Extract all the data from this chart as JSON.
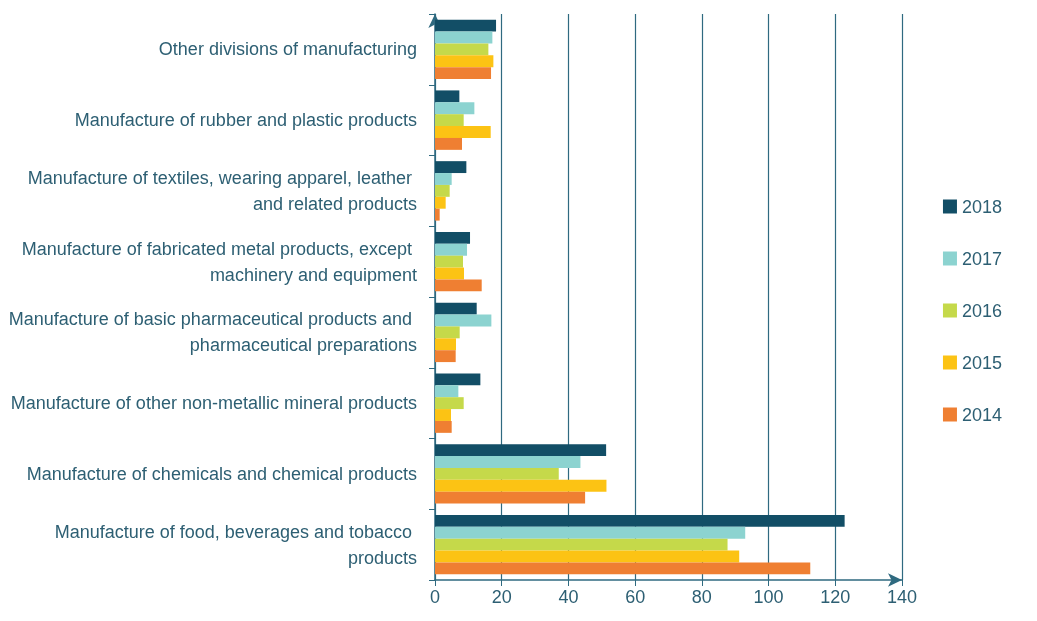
{
  "chart_data": {
    "type": "bar",
    "orientation": "horizontal",
    "categories": [
      "Other divisions of manufacturing",
      "Manufacture of rubber and plastic products",
      "Manufacture of textiles, wearing apparel, leather and related products",
      "Manufacture of fabricated metal products, except machinery and equipment",
      "Manufacture of basic pharmaceutical products and pharmaceutical preparations",
      "Manufacture of other non-metallic mineral products",
      "Manufacture of chemicals and chemical products",
      "Manufacture of food, beverages and tobacco products"
    ],
    "series": [
      {
        "name": "2018",
        "color": "#124e66",
        "values": [
          18.3,
          7.3,
          9.4,
          10.5,
          12.5,
          13.6,
          51.3,
          122.8
        ]
      },
      {
        "name": "2017",
        "color": "#8cd3d0",
        "values": [
          17.2,
          11.8,
          5,
          9.6,
          16.9,
          7,
          43.6,
          93
        ]
      },
      {
        "name": "2016",
        "color": "#c5d94a",
        "values": [
          16,
          8.6,
          4.4,
          8.4,
          7.4,
          8.6,
          37.1,
          87.7
        ]
      },
      {
        "name": "2015",
        "color": "#fcc314",
        "values": [
          17.5,
          16.7,
          3.2,
          8.7,
          6.3,
          4.8,
          51.4,
          91.2
        ]
      },
      {
        "name": "2014",
        "color": "#ef7f32",
        "values": [
          16.8,
          8.1,
          1.4,
          14,
          6.2,
          5,
          45,
          112.5
        ]
      }
    ],
    "xlim": [
      0,
      140
    ],
    "xticks": [
      0,
      20,
      40,
      60,
      80,
      100,
      120,
      140
    ],
    "grid": "x",
    "legend": "right"
  }
}
